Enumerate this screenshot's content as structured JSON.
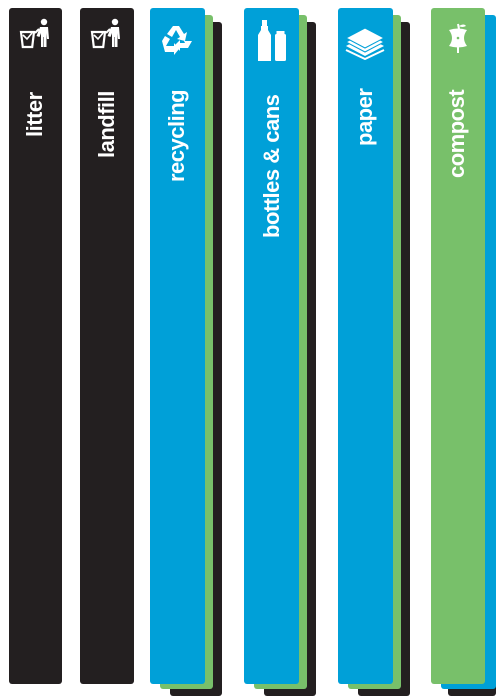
{
  "colors": {
    "landfill_black": "#231f20",
    "recycling_blue": "#00a0d8",
    "compost_green": "#78c06a",
    "text_white": "#ffffff"
  },
  "strips": {
    "litter": {
      "label": "litter",
      "icon": "trash-bin-person-icon",
      "color": "#231f20"
    },
    "landfill": {
      "label": "landfill",
      "icon": "trash-bin-person-icon",
      "color": "#231f20"
    },
    "recycling": {
      "label": "recycling",
      "icon": "recycle-arrows-icon",
      "color": "#00a0d8"
    },
    "bottles_cans": {
      "label": "bottles & cans",
      "icon": "bottle-can-icon",
      "color": "#00a0d8"
    },
    "paper": {
      "label": "paper",
      "icon": "paper-stack-icon",
      "color": "#00a0d8"
    },
    "compost": {
      "label": "compost",
      "icon": "apple-core-icon",
      "color": "#78c06a"
    }
  }
}
